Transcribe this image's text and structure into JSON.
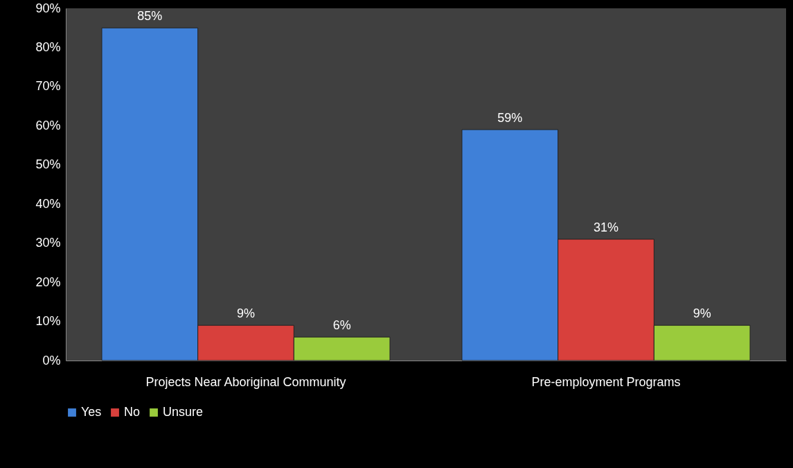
{
  "chart_data": {
    "type": "bar",
    "categories": [
      "Projects Near Aboriginal Community",
      "Pre-employment Programs"
    ],
    "series": [
      {
        "name": "Yes",
        "color": "#3f80d8",
        "values": [
          85,
          59
        ],
        "value_labels": [
          "85%",
          "59%"
        ]
      },
      {
        "name": "No",
        "color": "#d8403c",
        "values": [
          9,
          31
        ],
        "value_labels": [
          "9%",
          "31%"
        ]
      },
      {
        "name": "Unsure",
        "color": "#9acb3c",
        "values": [
          6,
          9
        ],
        "value_labels": [
          "6%",
          "9%"
        ]
      }
    ],
    "ylim": [
      0,
      90
    ],
    "yticks": [
      {
        "value": 0,
        "label": "0%"
      },
      {
        "value": 10,
        "label": "10%"
      },
      {
        "value": 20,
        "label": "20%"
      },
      {
        "value": 30,
        "label": "30%"
      },
      {
        "value": 40,
        "label": "40%"
      },
      {
        "value": 50,
        "label": "50%"
      },
      {
        "value": 60,
        "label": "60%"
      },
      {
        "value": 70,
        "label": "70%"
      },
      {
        "value": 80,
        "label": "80%"
      },
      {
        "value": 90,
        "label": "90%"
      }
    ],
    "legend": "bottom"
  }
}
